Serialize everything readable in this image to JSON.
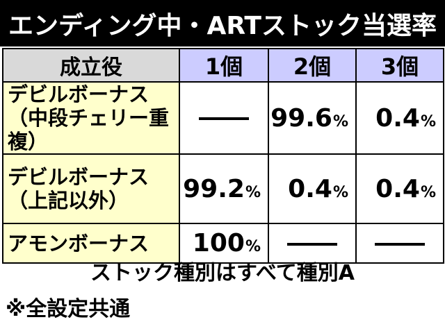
{
  "title": "エンディング中・ARTストック当選率",
  "table": {
    "headers": [
      "成立役",
      "1個",
      "2個",
      "3個"
    ],
    "rows": [
      {
        "role_line1": "デビルボーナス",
        "role_line2": "（中段チェリー重複）",
        "values": [
          "—",
          "99.6",
          "0.4"
        ]
      },
      {
        "role_line1": "デビルボーナス",
        "role_line2": "（上記以外）",
        "values": [
          "99.2",
          "0.4",
          "0.4"
        ]
      },
      {
        "role_line1": "アモンボーナス",
        "role_line2": "",
        "values": [
          "100",
          "—",
          "—"
        ]
      }
    ],
    "percent_sign": "%"
  },
  "notes": {
    "line1": "ストック種別はすべて種別A",
    "line2": "※全設定共通"
  },
  "colors": {
    "title_bg": "#000000",
    "header_role_bg": "#d9d9d9",
    "header_col_bg": "#ccccff",
    "role_bg": "#ffffcc"
  }
}
